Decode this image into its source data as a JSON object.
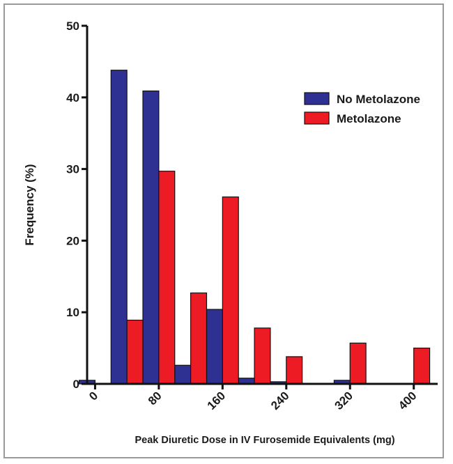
{
  "chart_data": {
    "type": "bar",
    "xlabel": "Peak Diuretic Dose in IV Furosemide Equivalents (mg)",
    "ylabel": "Frequency (%)",
    "ylim": [
      0,
      50
    ],
    "yticks": [
      0,
      10,
      20,
      30,
      40,
      50
    ],
    "xlim": [
      -10,
      430
    ],
    "xticks": [
      0,
      80,
      160,
      240,
      320,
      400
    ],
    "bin_width": 40,
    "legend": "top-right",
    "grid": false,
    "series": [
      {
        "name": "No Metolazone",
        "color": "#2e3192",
        "x": [
          0,
          40,
          80,
          120,
          160,
          200,
          240,
          280,
          320,
          360,
          400
        ],
        "values": [
          0.5,
          43.8,
          40.9,
          2.6,
          10.4,
          0.8,
          0.3,
          0,
          0.5,
          0,
          0
        ]
      },
      {
        "name": "Metolazone",
        "color": "#ed1c24",
        "x": [
          0,
          40,
          80,
          120,
          160,
          200,
          240,
          280,
          320,
          360,
          400
        ],
        "values": [
          0,
          8.9,
          29.7,
          12.7,
          26.1,
          7.8,
          3.8,
          0,
          5.7,
          0,
          5.0
        ]
      }
    ]
  }
}
